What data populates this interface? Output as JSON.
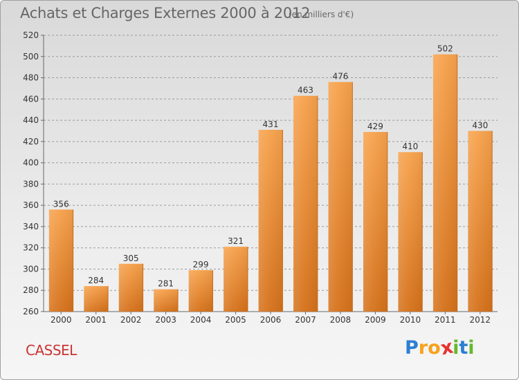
{
  "chart_data": {
    "type": "bar",
    "title": "Achats et Charges Externes 2000 à 2012",
    "subtitle": "(en milliers d'€)",
    "categories": [
      "2000",
      "2001",
      "2002",
      "2003",
      "2004",
      "2005",
      "2006",
      "2007",
      "2008",
      "2009",
      "2010",
      "2011",
      "2012"
    ],
    "values": [
      356,
      284,
      305,
      281,
      299,
      321,
      431,
      463,
      476,
      429,
      410,
      502,
      430
    ],
    "ylim": [
      260,
      520
    ],
    "yticks": [
      260,
      280,
      300,
      320,
      340,
      360,
      380,
      400,
      420,
      440,
      460,
      480,
      500,
      520
    ],
    "grid": true,
    "bar_color": "#f0963c"
  },
  "footer": {
    "commune": "CASSEL",
    "logo_letters": [
      "P",
      "r",
      "o",
      "x",
      "i",
      "t",
      "i"
    ],
    "logo_colors": [
      "#2b7fd4",
      "#f7a21b",
      "#f7a21b",
      "#e8312f",
      "#66b82e",
      "#2b7fd4",
      "#66b82e"
    ]
  }
}
